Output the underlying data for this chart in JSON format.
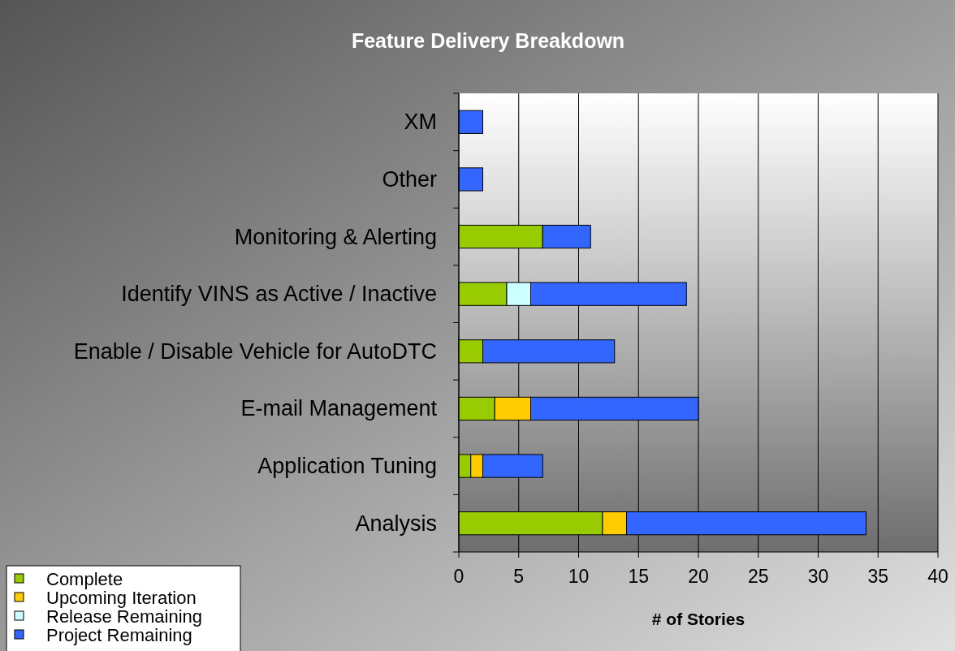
{
  "chart_data": {
    "type": "bar",
    "orientation": "horizontal",
    "stacked": true,
    "title": "Feature Delivery Breakdown",
    "xlabel": "# of Stories",
    "categories": [
      "XM",
      "Other",
      "Monitoring & Alerting",
      "Identify VINS as Active / Inactive",
      "Enable / Disable Vehicle for AutoDTC",
      "E-mail Management",
      "Application Tuning",
      "Analysis"
    ],
    "series": [
      {
        "name": "Complete",
        "color": "#99cc00",
        "values": [
          0,
          0,
          7,
          4,
          2,
          3,
          1,
          12
        ]
      },
      {
        "name": "Upcoming Iteration",
        "color": "#ffcc00",
        "values": [
          0,
          0,
          0,
          0,
          0,
          3,
          1,
          2
        ]
      },
      {
        "name": "Release Remaining",
        "color": "#ccffff",
        "values": [
          0,
          0,
          0,
          2,
          0,
          0,
          0,
          0
        ]
      },
      {
        "name": "Project Remaining",
        "color": "#3366ff",
        "values": [
          2,
          2,
          4,
          13,
          11,
          14,
          5,
          20
        ]
      }
    ],
    "xlim": [
      0,
      40
    ],
    "xticks": [
      0,
      5,
      10,
      15,
      20,
      25,
      30,
      35,
      40
    ],
    "grid": "x",
    "legend": "bottom left"
  }
}
